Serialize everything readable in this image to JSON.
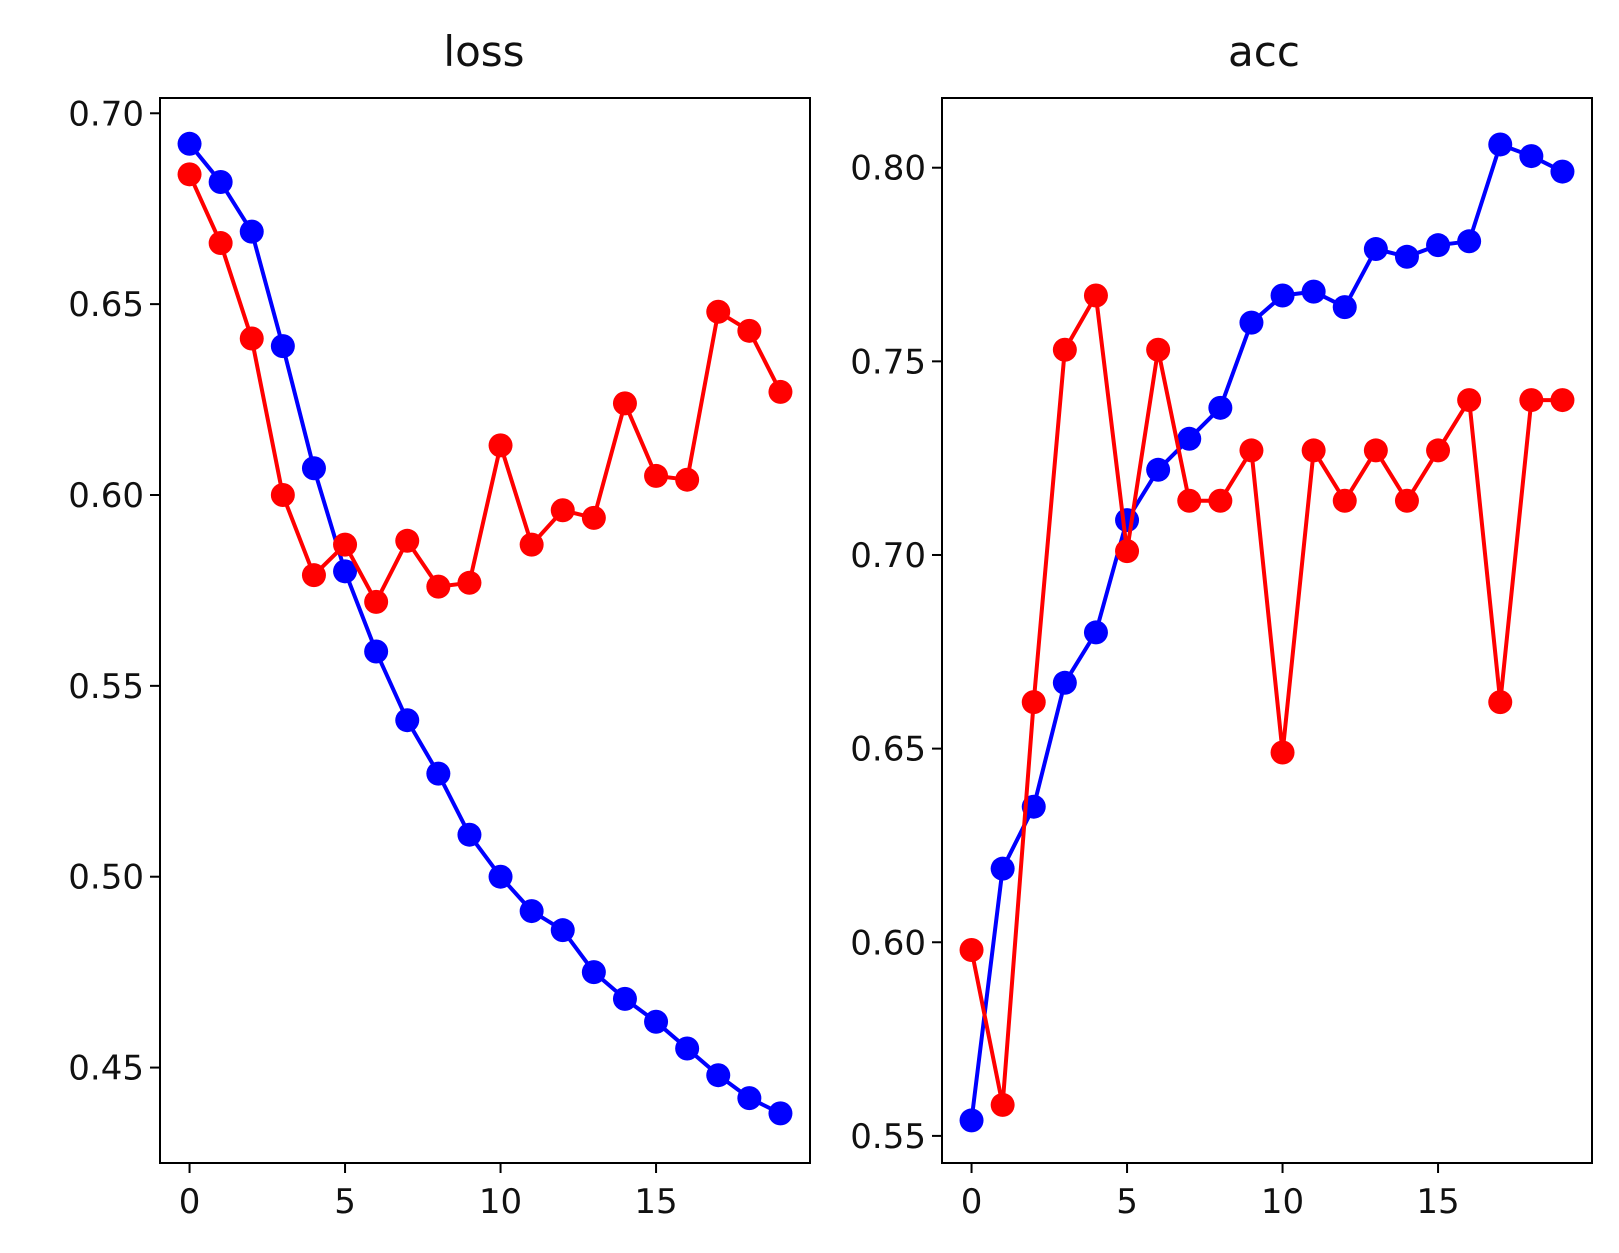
{
  "chart_data": [
    {
      "type": "line",
      "title": "loss",
      "xlabel": "",
      "ylabel": "",
      "x": [
        0,
        1,
        2,
        3,
        4,
        5,
        6,
        7,
        8,
        9,
        10,
        11,
        12,
        13,
        14,
        15,
        16,
        17,
        18,
        19
      ],
      "xlim": [
        -0.95,
        19.95
      ],
      "ylim": [
        0.425,
        0.704
      ],
      "xticks": [
        "0",
        "5",
        "10",
        "15"
      ],
      "yticks": [
        "0.45",
        "0.50",
        "0.55",
        "0.60",
        "0.65",
        "0.70"
      ],
      "grid": false,
      "series": [
        {
          "color": "#0000ff",
          "marker": "circle",
          "values": [
            0.692,
            0.682,
            0.669,
            0.639,
            0.607,
            0.58,
            0.559,
            0.541,
            0.527,
            0.511,
            0.5,
            0.491,
            0.486,
            0.475,
            0.468,
            0.462,
            0.455,
            0.448,
            0.442,
            0.438
          ]
        },
        {
          "color": "#ff0000",
          "marker": "circle",
          "values": [
            0.684,
            0.666,
            0.641,
            0.6,
            0.579,
            0.587,
            0.572,
            0.588,
            0.576,
            0.577,
            0.613,
            0.587,
            0.596,
            0.594,
            0.624,
            0.605,
            0.604,
            0.648,
            0.643,
            0.627
          ]
        }
      ]
    },
    {
      "type": "line",
      "title": "acc",
      "xlabel": "",
      "ylabel": "",
      "x": [
        0,
        1,
        2,
        3,
        4,
        5,
        6,
        7,
        8,
        9,
        10,
        11,
        12,
        13,
        14,
        15,
        16,
        17,
        18,
        19
      ],
      "xlim": [
        -0.95,
        19.95
      ],
      "ylim": [
        0.543,
        0.818
      ],
      "xticks": [
        "0",
        "5",
        "10",
        "15"
      ],
      "yticks": [
        "0.55",
        "0.60",
        "0.65",
        "0.70",
        "0.75",
        "0.80"
      ],
      "grid": false,
      "series": [
        {
          "color": "#0000ff",
          "marker": "circle",
          "values": [
            0.554,
            0.619,
            0.635,
            0.667,
            0.68,
            0.709,
            0.722,
            0.73,
            0.738,
            0.76,
            0.767,
            0.768,
            0.764,
            0.779,
            0.777,
            0.78,
            0.781,
            0.806,
            0.803,
            0.799
          ]
        },
        {
          "color": "#ff0000",
          "marker": "circle",
          "values": [
            0.598,
            0.558,
            0.662,
            0.753,
            0.767,
            0.701,
            0.753,
            0.714,
            0.714,
            0.727,
            0.649,
            0.727,
            0.714,
            0.727,
            0.714,
            0.727,
            0.74,
            0.662,
            0.74,
            0.74
          ]
        }
      ]
    }
  ]
}
